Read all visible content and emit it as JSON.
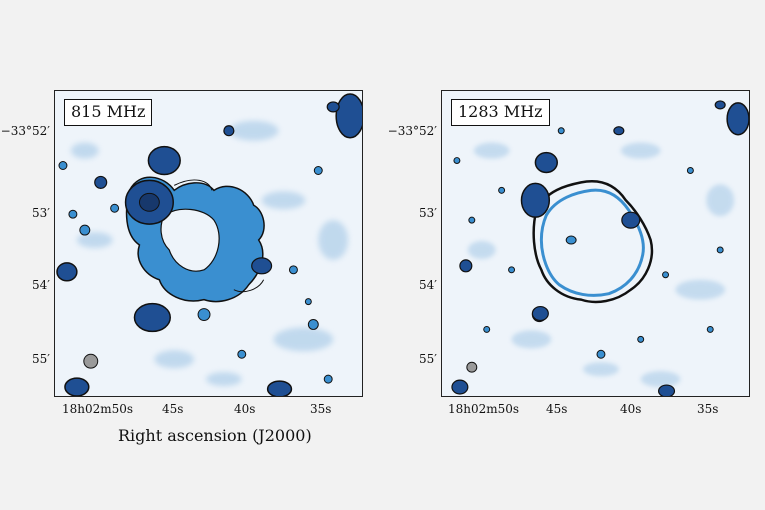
{
  "panels": [
    {
      "id": "left",
      "frequency_label": "815 MHz",
      "y_ticks": [
        "−33°52′",
        "53′",
        "54′",
        "55′"
      ],
      "x_ticks": [
        "18h02m50s",
        "45s",
        "40s",
        "35s"
      ]
    },
    {
      "id": "right",
      "frequency_label": "1283 MHz",
      "y_ticks": [
        "−33°52′",
        "53′",
        "54′",
        "55′"
      ],
      "x_ticks": [
        "18h02m50s",
        "45s",
        "40s",
        "35s"
      ]
    }
  ],
  "x_axis_label": "Right ascension (J2000)",
  "colors": {
    "background_noise": "#9cc3e4",
    "emission_mid": "#3a8fd0",
    "emission_bright": "#1f4f93",
    "contour": "#111111",
    "beam": "#9a9a9a"
  }
}
